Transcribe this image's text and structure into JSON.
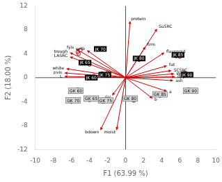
{
  "chart_data": {
    "type": "biplot",
    "xlabel": "F1 (63.99 %)",
    "ylabel": "F2 (18.00 %)",
    "xlim": [
      -10,
      10
    ],
    "ylim": [
      -12,
      12
    ],
    "xticks": [
      -10,
      -8,
      -6,
      -4,
      -2,
      0,
      2,
      4,
      6,
      8,
      10
    ],
    "yticks": [
      -12,
      -8,
      -4,
      0,
      4,
      8,
      12
    ],
    "grid": false,
    "hline": 0,
    "vline": 0,
    "series": [
      {
        "type": "arrow",
        "color": "#cc0000",
        "from": [
          0,
          0
        ],
        "labels": [
          "protein",
          "SuSRC",
          "firm",
          "flavonoid",
          "fat",
          "SCSRC",
          "WRC",
          "dpph",
          "ash",
          "a",
          "b",
          "SV",
          "moist",
          "bdown",
          "fyis",
          "setb",
          "trough",
          "LASRC",
          "white",
          "pvis",
          "L"
        ],
        "x": [
          0.5,
          3.5,
          2.2,
          4.3,
          4.6,
          5.1,
          5.4,
          5.5,
          5.3,
          4.6,
          3.0,
          -1.5,
          -1.0,
          -2.8,
          -5.5,
          -4.3,
          -6.2,
          -6.2,
          -6.6,
          -6.8,
          -6.8
        ],
        "y": [
          9.5,
          8.2,
          5.2,
          4.2,
          2.0,
          1.2,
          0.65,
          0.15,
          -0.5,
          -2.3,
          -3.5,
          -3.0,
          -8.8,
          -8.8,
          4.8,
          4.6,
          4.2,
          3.5,
          1.5,
          0.8,
          0.2
        ]
      },
      {
        "type": "scatter",
        "marker": "open_circle",
        "color": "#cc0000",
        "x": [
          -5.0,
          -5.3,
          -5.2,
          -4.3,
          -4.6,
          -4.0,
          -3.5,
          -4.0,
          -2.0,
          -2.6,
          1.8,
          1.5,
          5.6,
          6.0,
          6.5,
          6.8
        ],
        "y": [
          4.6,
          4.3,
          4.0,
          2.6,
          2.4,
          2.2,
          0.3,
          0.2,
          0.8,
          0.7,
          3.3,
          3.0,
          3.6,
          3.5,
          0.8,
          0.5
        ]
      },
      {
        "type": "scatter",
        "marker": "open_circle",
        "color": "#0000bb",
        "x": [
          -5.3,
          -5.8,
          -3.5,
          -4.0,
          -5.5,
          -6.0,
          -2.0,
          -2.5,
          0.5,
          0.9,
          3.5,
          3.8,
          7.0,
          7.4
        ],
        "y": [
          -2.0,
          -2.3,
          -3.4,
          -3.7,
          -3.8,
          -4.0,
          -3.7,
          -4.0,
          -3.4,
          -3.8,
          -2.7,
          -3.0,
          -2.0,
          -2.3
        ]
      },
      {
        "type": "label_box",
        "color": "black",
        "labels": [
          "JK 60",
          "JK 65",
          "JK 70",
          "JK 75",
          "JK 80",
          "JK 85",
          "JK 90"
        ],
        "x": [
          -3.8,
          -4.5,
          -2.8,
          -2.3,
          1.5,
          5.8,
          6.8
        ],
        "y": [
          0.0,
          2.5,
          4.8,
          0.5,
          3.2,
          3.8,
          0.5
        ]
      },
      {
        "type": "label_box",
        "color": "#d8d8d8",
        "labels": [
          "GK 60",
          "GK 65",
          "GK 70",
          "GK 75",
          "GK 80",
          "GK 85",
          "GK 90"
        ],
        "x": [
          -5.5,
          -3.8,
          -5.8,
          -2.2,
          0.5,
          3.8,
          7.2
        ],
        "y": [
          -2.2,
          -3.5,
          -3.8,
          -3.8,
          -3.5,
          -2.8,
          -2.2
        ]
      }
    ]
  }
}
